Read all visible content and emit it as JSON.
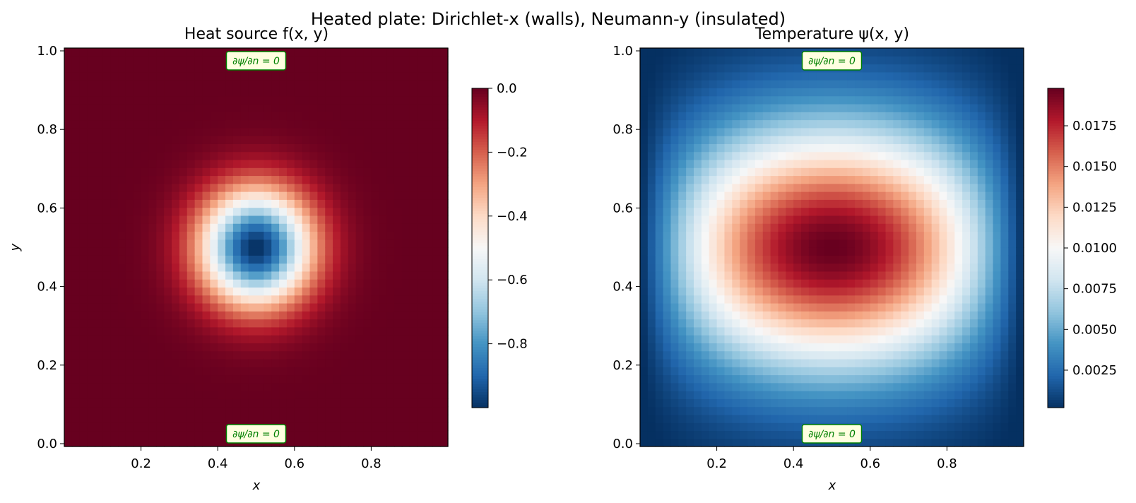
{
  "figure": {
    "suptitle": "Heated plate: Dirichlet-x (walls), Neumann-y (insulated)"
  },
  "chart_data": [
    {
      "type": "heatmap",
      "title": "Heat source f(x, y)",
      "xlabel": "x",
      "ylabel": "y",
      "xlim": [
        0,
        1
      ],
      "ylim": [
        0,
        1
      ],
      "grid_size": 50,
      "function": "-exp(-((x-0.5)^2+(y-0.5)^2)/(2*0.1^2))",
      "x_ticks": [
        "0.2",
        "0.4",
        "0.6",
        "0.8"
      ],
      "x_tick_values": [
        0.2,
        0.4,
        0.6,
        0.8
      ],
      "y_ticks": [
        "0.0",
        "0.2",
        "0.4",
        "0.6",
        "0.8",
        "1.0"
      ],
      "y_tick_values": [
        0.0,
        0.2,
        0.4,
        0.6,
        0.8,
        1.0
      ],
      "colormap": "RdBu_r",
      "colorbar": {
        "vmin": -1.0,
        "vmax": 0.0,
        "ticks": [
          "0.0",
          "−0.2",
          "−0.4",
          "−0.6",
          "−0.8"
        ],
        "tick_values": [
          0.0,
          -0.2,
          -0.4,
          -0.6,
          -0.8
        ]
      },
      "annotations": {
        "top": "∂ψ/∂n = 0",
        "bottom": "∂ψ/∂n = 0"
      }
    },
    {
      "type": "heatmap",
      "title": "Temperature ψ(x, y)",
      "xlabel": "x",
      "ylabel": "",
      "xlim": [
        0,
        1
      ],
      "ylim": [
        0,
        1
      ],
      "grid_size": 50,
      "function": "0.0198*sin(pi*x)*exp(-(y-0.5)^2/(2*0.21^2))",
      "x_ticks": [
        "0.2",
        "0.4",
        "0.6",
        "0.8"
      ],
      "x_tick_values": [
        0.2,
        0.4,
        0.6,
        0.8
      ],
      "y_ticks": [
        "0.0",
        "0.2",
        "0.4",
        "0.6",
        "0.8",
        "1.0"
      ],
      "y_tick_values": [
        0.0,
        0.2,
        0.4,
        0.6,
        0.8,
        1.0
      ],
      "colormap": "RdBu_r",
      "colorbar": {
        "vmin": 0.0002,
        "vmax": 0.0198,
        "ticks": [
          "0.0175",
          "0.0150",
          "0.0125",
          "0.0100",
          "0.0075",
          "0.0050",
          "0.0025"
        ],
        "tick_values": [
          0.0175,
          0.015,
          0.0125,
          0.01,
          0.0075,
          0.005,
          0.0025
        ]
      },
      "annotations": {
        "top": "∂ψ/∂n = 0",
        "bottom": "∂ψ/∂n = 0"
      }
    }
  ],
  "colors": {
    "annotation_text": "#008000",
    "annotation_border": "#008000",
    "annotation_fill": "#ffffe0"
  }
}
